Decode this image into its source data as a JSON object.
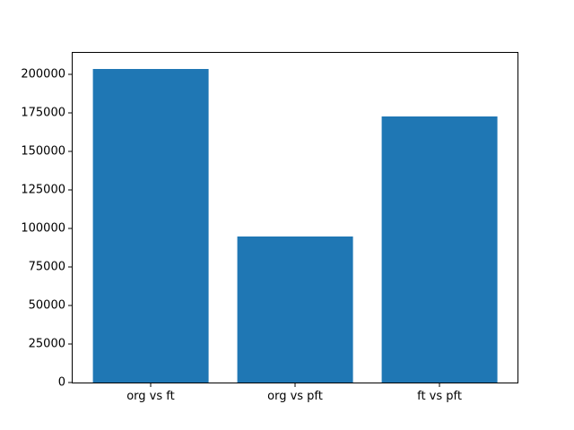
{
  "chart_data": {
    "type": "bar",
    "categories": [
      "org vs ft",
      "org vs pft",
      "ft vs pft"
    ],
    "values": [
      204000,
      95000,
      173000
    ],
    "title": "",
    "xlabel": "",
    "ylabel": "",
    "ylim": [
      0,
      214200
    ],
    "yticks": [
      0,
      25000,
      50000,
      75000,
      100000,
      125000,
      150000,
      175000,
      200000
    ],
    "ytick_labels": [
      "0",
      "25000",
      "50000",
      "75000",
      "100000",
      "125000",
      "150000",
      "175000",
      "200000"
    ],
    "xlim": [
      -0.54,
      2.54
    ],
    "bar_width": 0.8,
    "bar_color": "#1f77b4",
    "spine_color": "#000000",
    "text_color": "#000000",
    "background_color": "#ffffff",
    "grid": false,
    "legend": false
  }
}
